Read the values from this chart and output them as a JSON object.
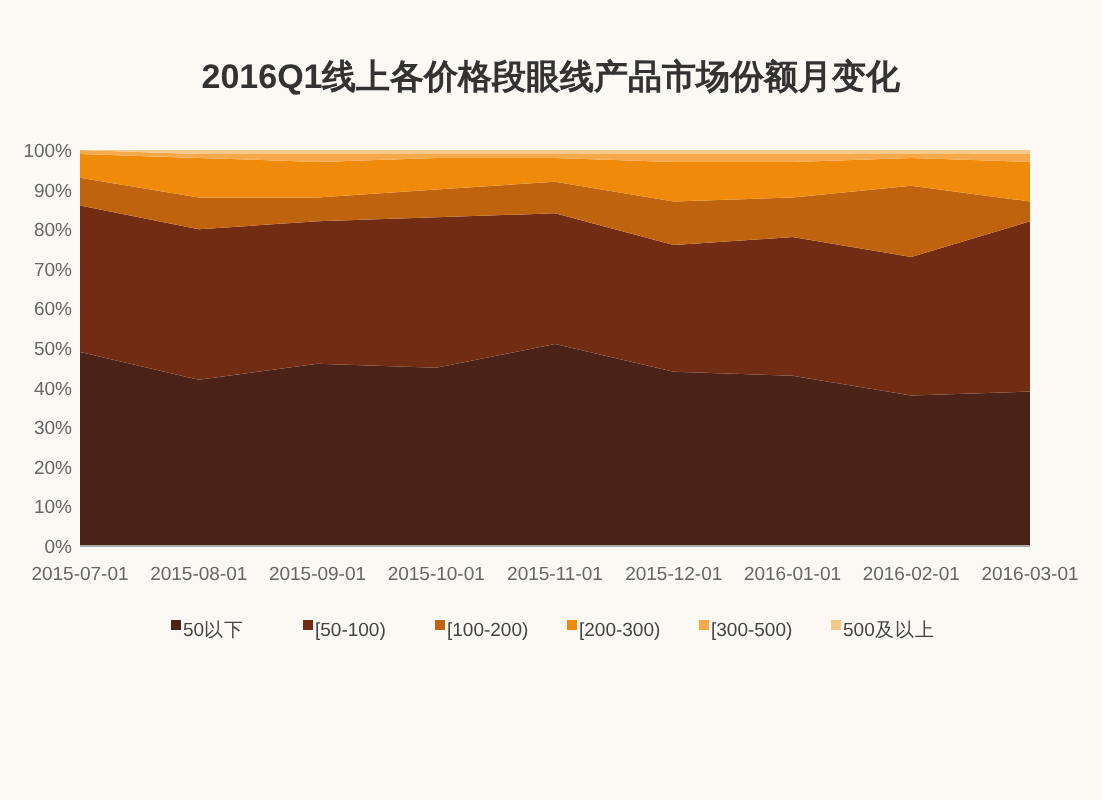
{
  "chart_data": {
    "type": "area",
    "title": "2016Q1线上各价格段眼线产品市场份额月变化",
    "categories": [
      "2015-07-01",
      "2015-08-01",
      "2015-09-01",
      "2015-10-01",
      "2015-11-01",
      "2015-12-01",
      "2016-01-01",
      "2016-02-01",
      "2016-03-01"
    ],
    "stacked": true,
    "series": [
      {
        "name": "50以下",
        "color": "#4a2218",
        "values": [
          49,
          42,
          46,
          45,
          51,
          44,
          43,
          38,
          39
        ]
      },
      {
        "name": "[50-100)",
        "color": "#722c14",
        "values": [
          37,
          38,
          36,
          38,
          33,
          32,
          35,
          35,
          43
        ]
      },
      {
        "name": "[100-200)",
        "color": "#c0630e",
        "values": [
          7,
          8,
          6,
          7,
          8,
          11,
          10,
          18,
          5
        ]
      },
      {
        "name": "[200-300)",
        "color": "#f08a0a",
        "values": [
          6,
          10,
          9,
          8,
          6,
          10,
          9,
          7,
          10
        ]
      },
      {
        "name": "[300-500)",
        "color": "#f5a94a",
        "values": [
          1,
          1,
          2,
          1,
          1,
          2,
          2,
          1,
          2
        ]
      },
      {
        "name": "500及以上",
        "color": "#f6c98a",
        "values": [
          0,
          1,
          1,
          1,
          1,
          1,
          1,
          1,
          1
        ]
      }
    ],
    "ylim": [
      0,
      100
    ],
    "yticks": [
      {
        "value": 0,
        "label": "0%"
      },
      {
        "value": 10,
        "label": "10%"
      },
      {
        "value": 20,
        "label": "20%"
      },
      {
        "value": 30,
        "label": "30%"
      },
      {
        "value": 40,
        "label": "40%"
      },
      {
        "value": 50,
        "label": "50%"
      },
      {
        "value": 60,
        "label": "60%"
      },
      {
        "value": 70,
        "label": "70%"
      },
      {
        "value": 80,
        "label": "80%"
      },
      {
        "value": 90,
        "label": "90%"
      },
      {
        "value": 100,
        "label": "100%"
      }
    ],
    "grid": false,
    "legend": "bottom"
  }
}
